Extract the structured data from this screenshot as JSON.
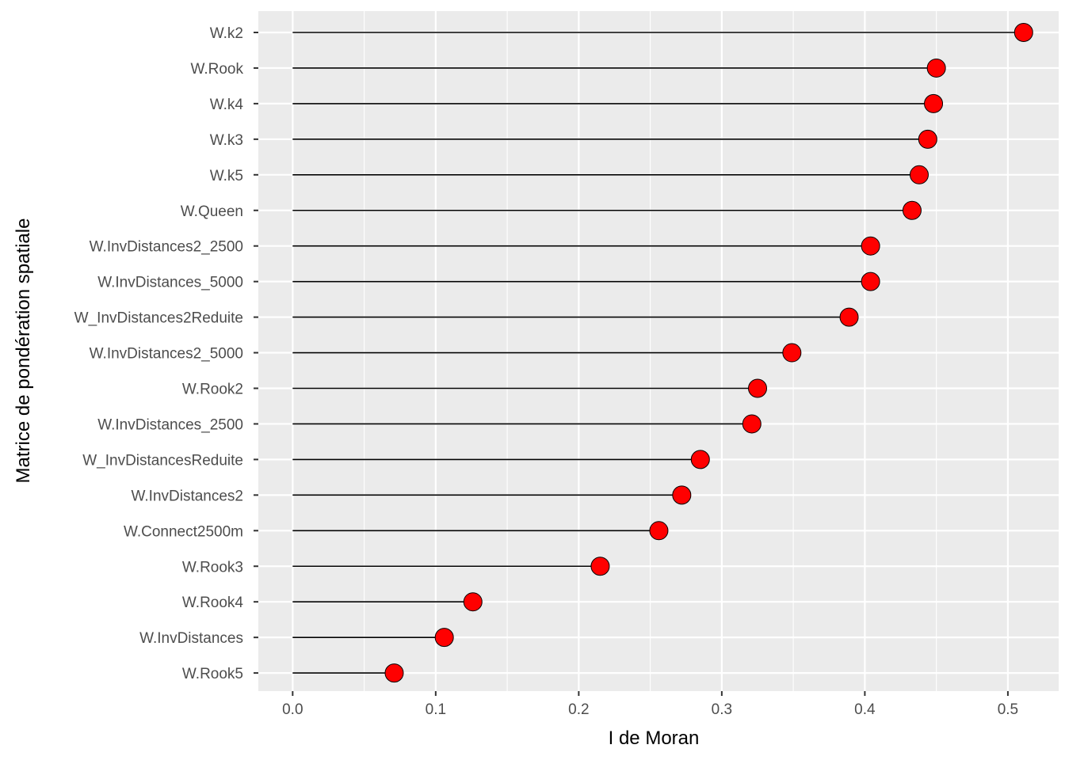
{
  "chart_data": {
    "type": "lollipop",
    "title": "",
    "xlabel": "I de Moran",
    "ylabel": "Matrice de pondération spatiale",
    "xlim": [
      -0.024,
      0.5355
    ],
    "x_ticks": [
      "0.0",
      "0.1",
      "0.2",
      "0.3",
      "0.4",
      "0.5"
    ],
    "x_tick_values": [
      0.0,
      0.1,
      0.2,
      0.3,
      0.4,
      0.5
    ],
    "grid": true,
    "legend": "none",
    "colors": {
      "panel": "#ebebeb",
      "grid": "#ffffff",
      "point_fill": "#ff0000",
      "point_stroke": "#000000",
      "segment": "#000000"
    },
    "points": [
      {
        "label": "W.k2",
        "value": 0.511
      },
      {
        "label": "W.Rook",
        "value": 0.45
      },
      {
        "label": "W.k4",
        "value": 0.448
      },
      {
        "label": "W.k3",
        "value": 0.444
      },
      {
        "label": "W.k5",
        "value": 0.438
      },
      {
        "label": "W.Queen",
        "value": 0.433
      },
      {
        "label": "W.InvDistances2_2500",
        "value": 0.404
      },
      {
        "label": "W.InvDistances_5000",
        "value": 0.404
      },
      {
        "label": "W_InvDistances2Reduite",
        "value": 0.389
      },
      {
        "label": "W.InvDistances2_5000",
        "value": 0.349
      },
      {
        "label": "W.Rook2",
        "value": 0.325
      },
      {
        "label": "W.InvDistances_2500",
        "value": 0.321
      },
      {
        "label": "W_InvDistancesReduite",
        "value": 0.285
      },
      {
        "label": "W.InvDistances2",
        "value": 0.272
      },
      {
        "label": "W.Connect2500m",
        "value": 0.256
      },
      {
        "label": "W.Rook3",
        "value": 0.215
      },
      {
        "label": "W.Rook4",
        "value": 0.126
      },
      {
        "label": "W.InvDistances",
        "value": 0.106
      },
      {
        "label": "W.Rook5",
        "value": 0.071
      }
    ]
  }
}
